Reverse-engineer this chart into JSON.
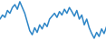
{
  "values": [
    55,
    62,
    58,
    70,
    65,
    75,
    80,
    72,
    85,
    75,
    65,
    50,
    35,
    28,
    40,
    32,
    45,
    38,
    48,
    42,
    55,
    60,
    65,
    58,
    68,
    62,
    72,
    65,
    75,
    68,
    60,
    70,
    55,
    62,
    45,
    55,
    40,
    30,
    22,
    32,
    25,
    38,
    30,
    42
  ],
  "line_color": "#2e86c7",
  "bg_color": "#ffffff",
  "linewidth": 1.1
}
